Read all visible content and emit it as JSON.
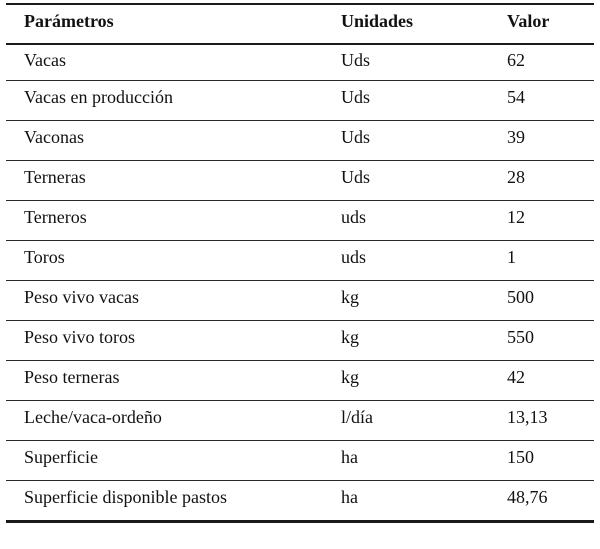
{
  "table": {
    "headers": [
      "Parámetros",
      "Unidades",
      "Valor"
    ],
    "rows": [
      {
        "param": "Vacas",
        "unit": "Uds",
        "value": "62"
      },
      {
        "param": "Vacas en producción",
        "unit": "Uds",
        "value": "54"
      },
      {
        "param": "Vaconas",
        "unit": "Uds",
        "value": "39"
      },
      {
        "param": "Terneras",
        "unit": "Uds",
        "value": "28"
      },
      {
        "param": "Terneros",
        "unit": "uds",
        "value": "12"
      },
      {
        "param": "Toros",
        "unit": "uds",
        "value": "1"
      },
      {
        "param": "Peso vivo vacas",
        "unit": "kg",
        "value": "500"
      },
      {
        "param": "Peso vivo toros",
        "unit": "kg",
        "value": "550"
      },
      {
        "param": "Peso terneras",
        "unit": "kg",
        "value": "42"
      },
      {
        "param": "Leche/vaca-ordeño",
        "unit": "l/día",
        "value": "13,13"
      },
      {
        "param": "Superficie",
        "unit": "ha",
        "value": "150"
      },
      {
        "param": "Superficie disponible pastos",
        "unit": "ha",
        "value": "48,76"
      }
    ]
  }
}
